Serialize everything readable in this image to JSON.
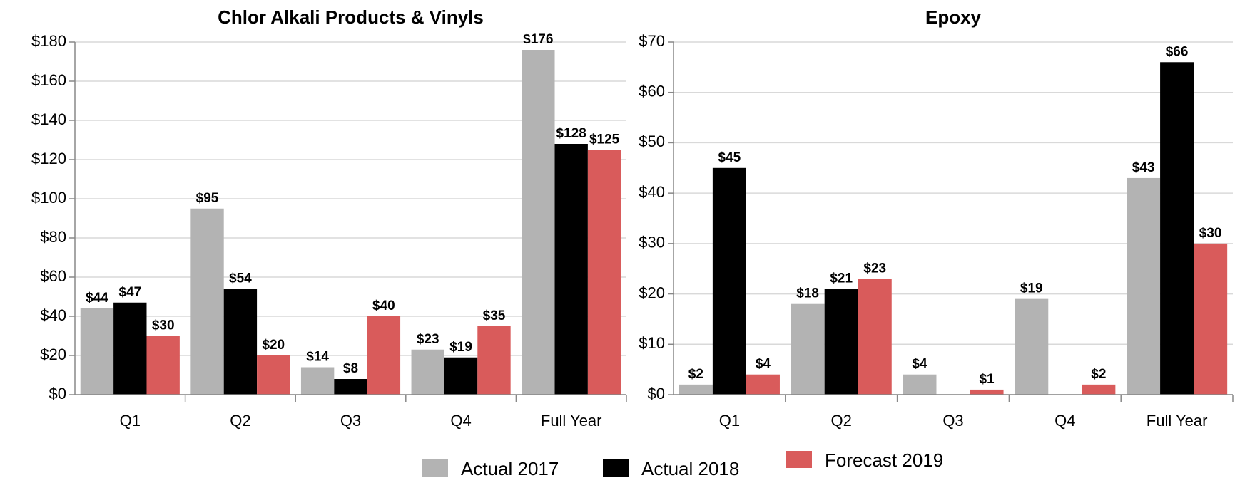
{
  "chart_data": [
    {
      "type": "bar",
      "title": "Chlor Alkali Products & Vinyls",
      "categories": [
        "Q1",
        "Q2",
        "Q3",
        "Q4",
        "Full Year"
      ],
      "series": [
        {
          "name": "Actual 2017",
          "color": "#b3b3b3",
          "values": [
            44,
            95,
            14,
            23,
            176
          ],
          "value_labels": [
            "$44",
            "$95",
            "$14",
            "$23",
            "$176"
          ]
        },
        {
          "name": "Actual 2018",
          "color": "#000000",
          "values": [
            47,
            54,
            8,
            19,
            128
          ],
          "value_labels": [
            "$47",
            "$54",
            "$8",
            "$19",
            "$128"
          ]
        },
        {
          "name": "Forecast 2019",
          "color": "#d95b5b",
          "values": [
            30,
            20,
            40,
            35,
            125
          ],
          "value_labels": [
            "$30",
            "$20",
            "$40",
            "$35",
            "$125"
          ]
        }
      ],
      "ylim": [
        0,
        180
      ],
      "yticks": [
        {
          "value": 0,
          "label": "$0"
        },
        {
          "value": 20,
          "label": "$20"
        },
        {
          "value": 40,
          "label": "$40"
        },
        {
          "value": 60,
          "label": "$60"
        },
        {
          "value": 80,
          "label": "$80"
        },
        {
          "value": 100,
          "label": "$100"
        },
        {
          "value": 120,
          "label": "$120"
        },
        {
          "value": 140,
          "label": "$140"
        },
        {
          "value": 160,
          "label": "$160"
        },
        {
          "value": 180,
          "label": "$180"
        }
      ],
      "grid": true,
      "legend": "bottom"
    },
    {
      "type": "bar",
      "title": "Epoxy",
      "categories": [
        "Q1",
        "Q2",
        "Q3",
        "Q4",
        "Full Year"
      ],
      "series": [
        {
          "name": "Actual 2017",
          "color": "#b3b3b3",
          "values": [
            2,
            18,
            4,
            19,
            43
          ],
          "value_labels": [
            "$2",
            "$18",
            "$4",
            "$19",
            "$43"
          ]
        },
        {
          "name": "Actual 2018",
          "color": "#000000",
          "values": [
            45,
            21,
            null,
            null,
            66
          ],
          "value_labels": [
            "$45",
            "$21",
            null,
            null,
            "$66"
          ]
        },
        {
          "name": "Forecast 2019",
          "color": "#d95b5b",
          "values": [
            4,
            23,
            1,
            2,
            30
          ],
          "value_labels": [
            "$4",
            "$23",
            "$1",
            "$2",
            "$30"
          ]
        }
      ],
      "ylim": [
        0,
        70
      ],
      "yticks": [
        {
          "value": 0,
          "label": "$0"
        },
        {
          "value": 10,
          "label": "$10"
        },
        {
          "value": 20,
          "label": "$20"
        },
        {
          "value": 30,
          "label": "$30"
        },
        {
          "value": 40,
          "label": "$40"
        },
        {
          "value": 50,
          "label": "$50"
        },
        {
          "value": 60,
          "label": "$60"
        },
        {
          "value": 70,
          "label": "$70"
        }
      ],
      "grid": true
    }
  ]
}
